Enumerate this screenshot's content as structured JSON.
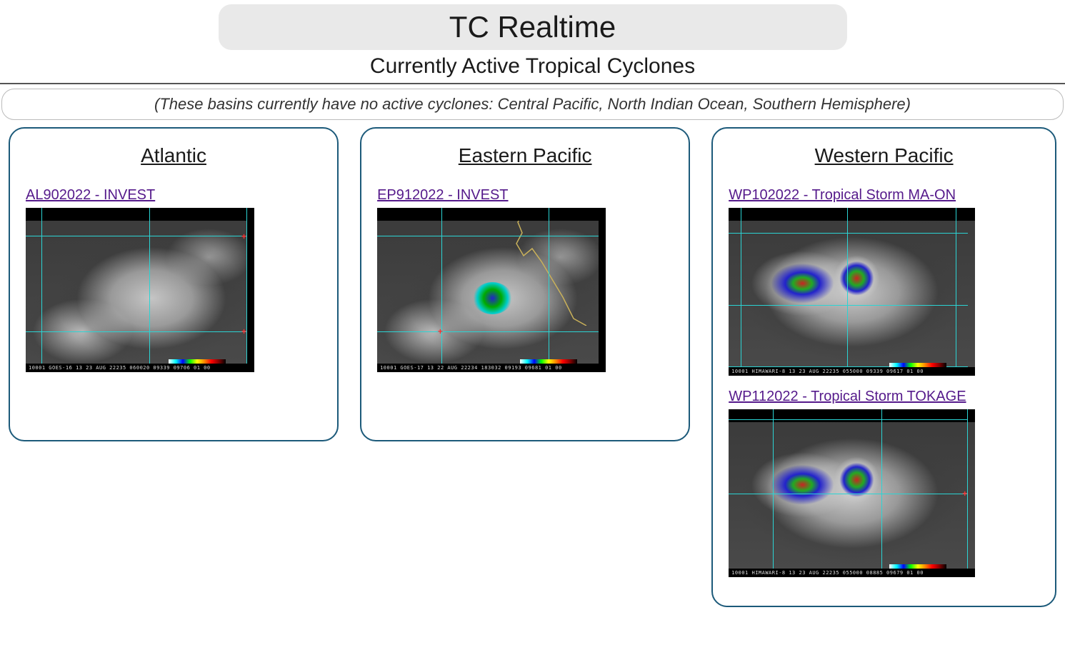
{
  "header": {
    "title": "TC Realtime",
    "subtitle": "Currently Active Tropical Cyclones"
  },
  "no_active_message": "(These basins currently have no active cyclones: Central Pacific, North Indian Ocean, Southern Hemisphere)",
  "colors": {
    "link": "#551a8b",
    "border": "#1c5a7a",
    "header_bg": "#e9e9e9",
    "gridline": "#2bd4d4",
    "cross": "#ff3030"
  },
  "basins": [
    {
      "name": "Atlantic",
      "storms": [
        {
          "id": "AL902022",
          "label": "AL902022 - INVEST",
          "sat_footer": "10001 GOES-16    13 23 AUG 22235 060020 09339 09706 01 00",
          "variant": "clouds",
          "grid_vlines_pct": [
            7,
            54,
            100
          ],
          "grid_hlines_pct": [
            17,
            75
          ],
          "cross_positions_pct": [
            [
              100,
              17
            ],
            [
              100,
              75
            ]
          ]
        }
      ]
    },
    {
      "name": "Eastern Pacific",
      "storms": [
        {
          "id": "EP912022",
          "label": "EP912022 - INVEST",
          "sat_footer": "10001 GOES-17    13 22 AUG 22234 183032 09193 09681 01 00",
          "variant": "ep",
          "grid_vlines_pct": [
            28,
            75
          ],
          "grid_hlines_pct": [
            17,
            75
          ],
          "cross_positions_pct": [
            [
              28,
              75
            ]
          ]
        }
      ]
    },
    {
      "name": "Western Pacific",
      "storms": [
        {
          "id": "WP102022",
          "label": "WP102022 - Tropical Storm MA-ON",
          "sat_footer": "10001 HIMAWARI-8 13 23 AUG 22235 055000 09339 09617 01 00",
          "variant": "wp",
          "grid_vlines_pct": [
            5,
            48,
            92
          ],
          "grid_hlines_pct": [
            15,
            58,
            100
          ],
          "cross_positions_pct": []
        },
        {
          "id": "WP112022",
          "label": "WP112022 - Tropical Storm TOKAGE",
          "sat_footer": "10001 HIMAWARI-8 13 23 AUG 22235 055000 08885 09679 01 00",
          "variant": "wp",
          "grid_vlines_pct": [
            18,
            62,
            100
          ],
          "grid_hlines_pct": [
            6,
            50,
            96
          ],
          "cross_positions_pct": [
            [
              100,
              50
            ]
          ]
        }
      ]
    }
  ]
}
